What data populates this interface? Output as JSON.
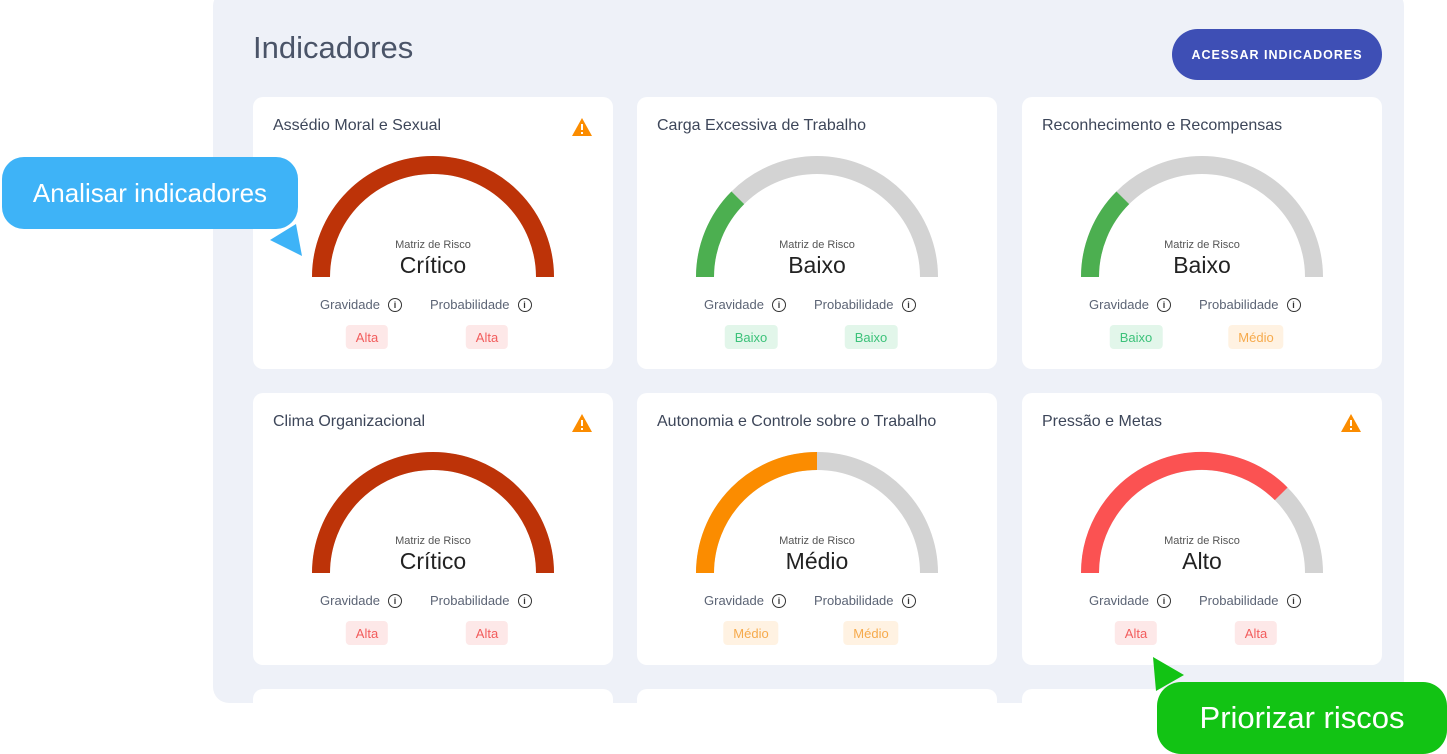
{
  "header": {
    "title": "Indicadores",
    "button_label": "ACESSAR INDICADORES"
  },
  "matrix_label": "Matriz de Risco",
  "gravidade_label": "Gravidade",
  "probabilidade_label": "Probabilidade",
  "colors": {
    "critico": "#bd3308",
    "alto": "#fb5252",
    "medio": "#fb8c00",
    "baixo": "#4caf50",
    "track": "#d3d3d3",
    "accent": "#3e4fb5",
    "warning": "#fb8c00"
  },
  "cards": [
    {
      "title": "Assédio Moral e Sexual",
      "warning": true,
      "level": "Crítico",
      "level_key": "critico",
      "fill_percent": 100,
      "gravidade": "Alta",
      "probabilidade": "Alta"
    },
    {
      "title": "Carga Excessiva de Trabalho",
      "warning": false,
      "level": "Baixo",
      "level_key": "baixo",
      "fill_percent": 25,
      "gravidade": "Baixo",
      "probabilidade": "Baixo"
    },
    {
      "title": "Reconhecimento e Recompensas",
      "warning": false,
      "level": "Baixo",
      "level_key": "baixo",
      "fill_percent": 25,
      "gravidade": "Baixo",
      "probabilidade": "Médio"
    },
    {
      "title": "Clima Organizacional",
      "warning": true,
      "level": "Crítico",
      "level_key": "critico",
      "fill_percent": 100,
      "gravidade": "Alta",
      "probabilidade": "Alta"
    },
    {
      "title": "Autonomia e Controle sobre o Trabalho",
      "warning": false,
      "level": "Médio",
      "level_key": "medio",
      "fill_percent": 50,
      "gravidade": "Médio",
      "probabilidade": "Médio"
    },
    {
      "title": "Pressão e Metas",
      "warning": true,
      "level": "Alto",
      "level_key": "alto",
      "fill_percent": 75,
      "gravidade": "Alta",
      "probabilidade": "Alta"
    }
  ],
  "callouts": {
    "analyze": "Analisar indicadores",
    "prioritize": "Priorizar riscos"
  }
}
